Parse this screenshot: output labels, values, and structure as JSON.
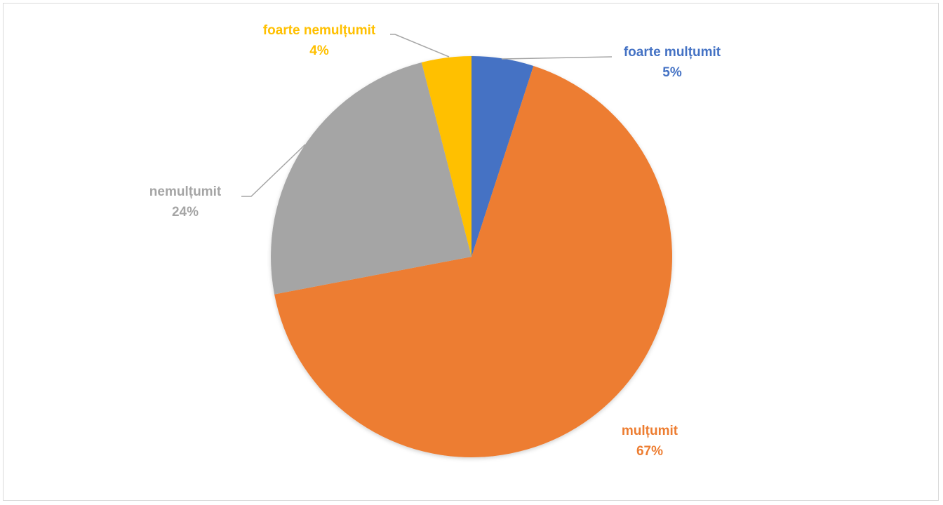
{
  "chart_data": {
    "type": "pie",
    "title": "",
    "slices": [
      {
        "label": "foarte mulțumit",
        "value": 5,
        "value_label": "5%",
        "color": "#4472C4"
      },
      {
        "label": "mulțumit",
        "value": 67,
        "value_label": "67%",
        "color": "#ED7D31"
      },
      {
        "label": "nemulțumit",
        "value": 24,
        "value_label": "24%",
        "color": "#A5A5A5"
      },
      {
        "label": "foarte nemulțumit",
        "value": 4,
        "value_label": "4%",
        "color": "#FFC000"
      }
    ],
    "start_angle_deg": 0,
    "direction": "clockwise",
    "legend": "none",
    "data_labels": "outside-with-leader-lines"
  }
}
